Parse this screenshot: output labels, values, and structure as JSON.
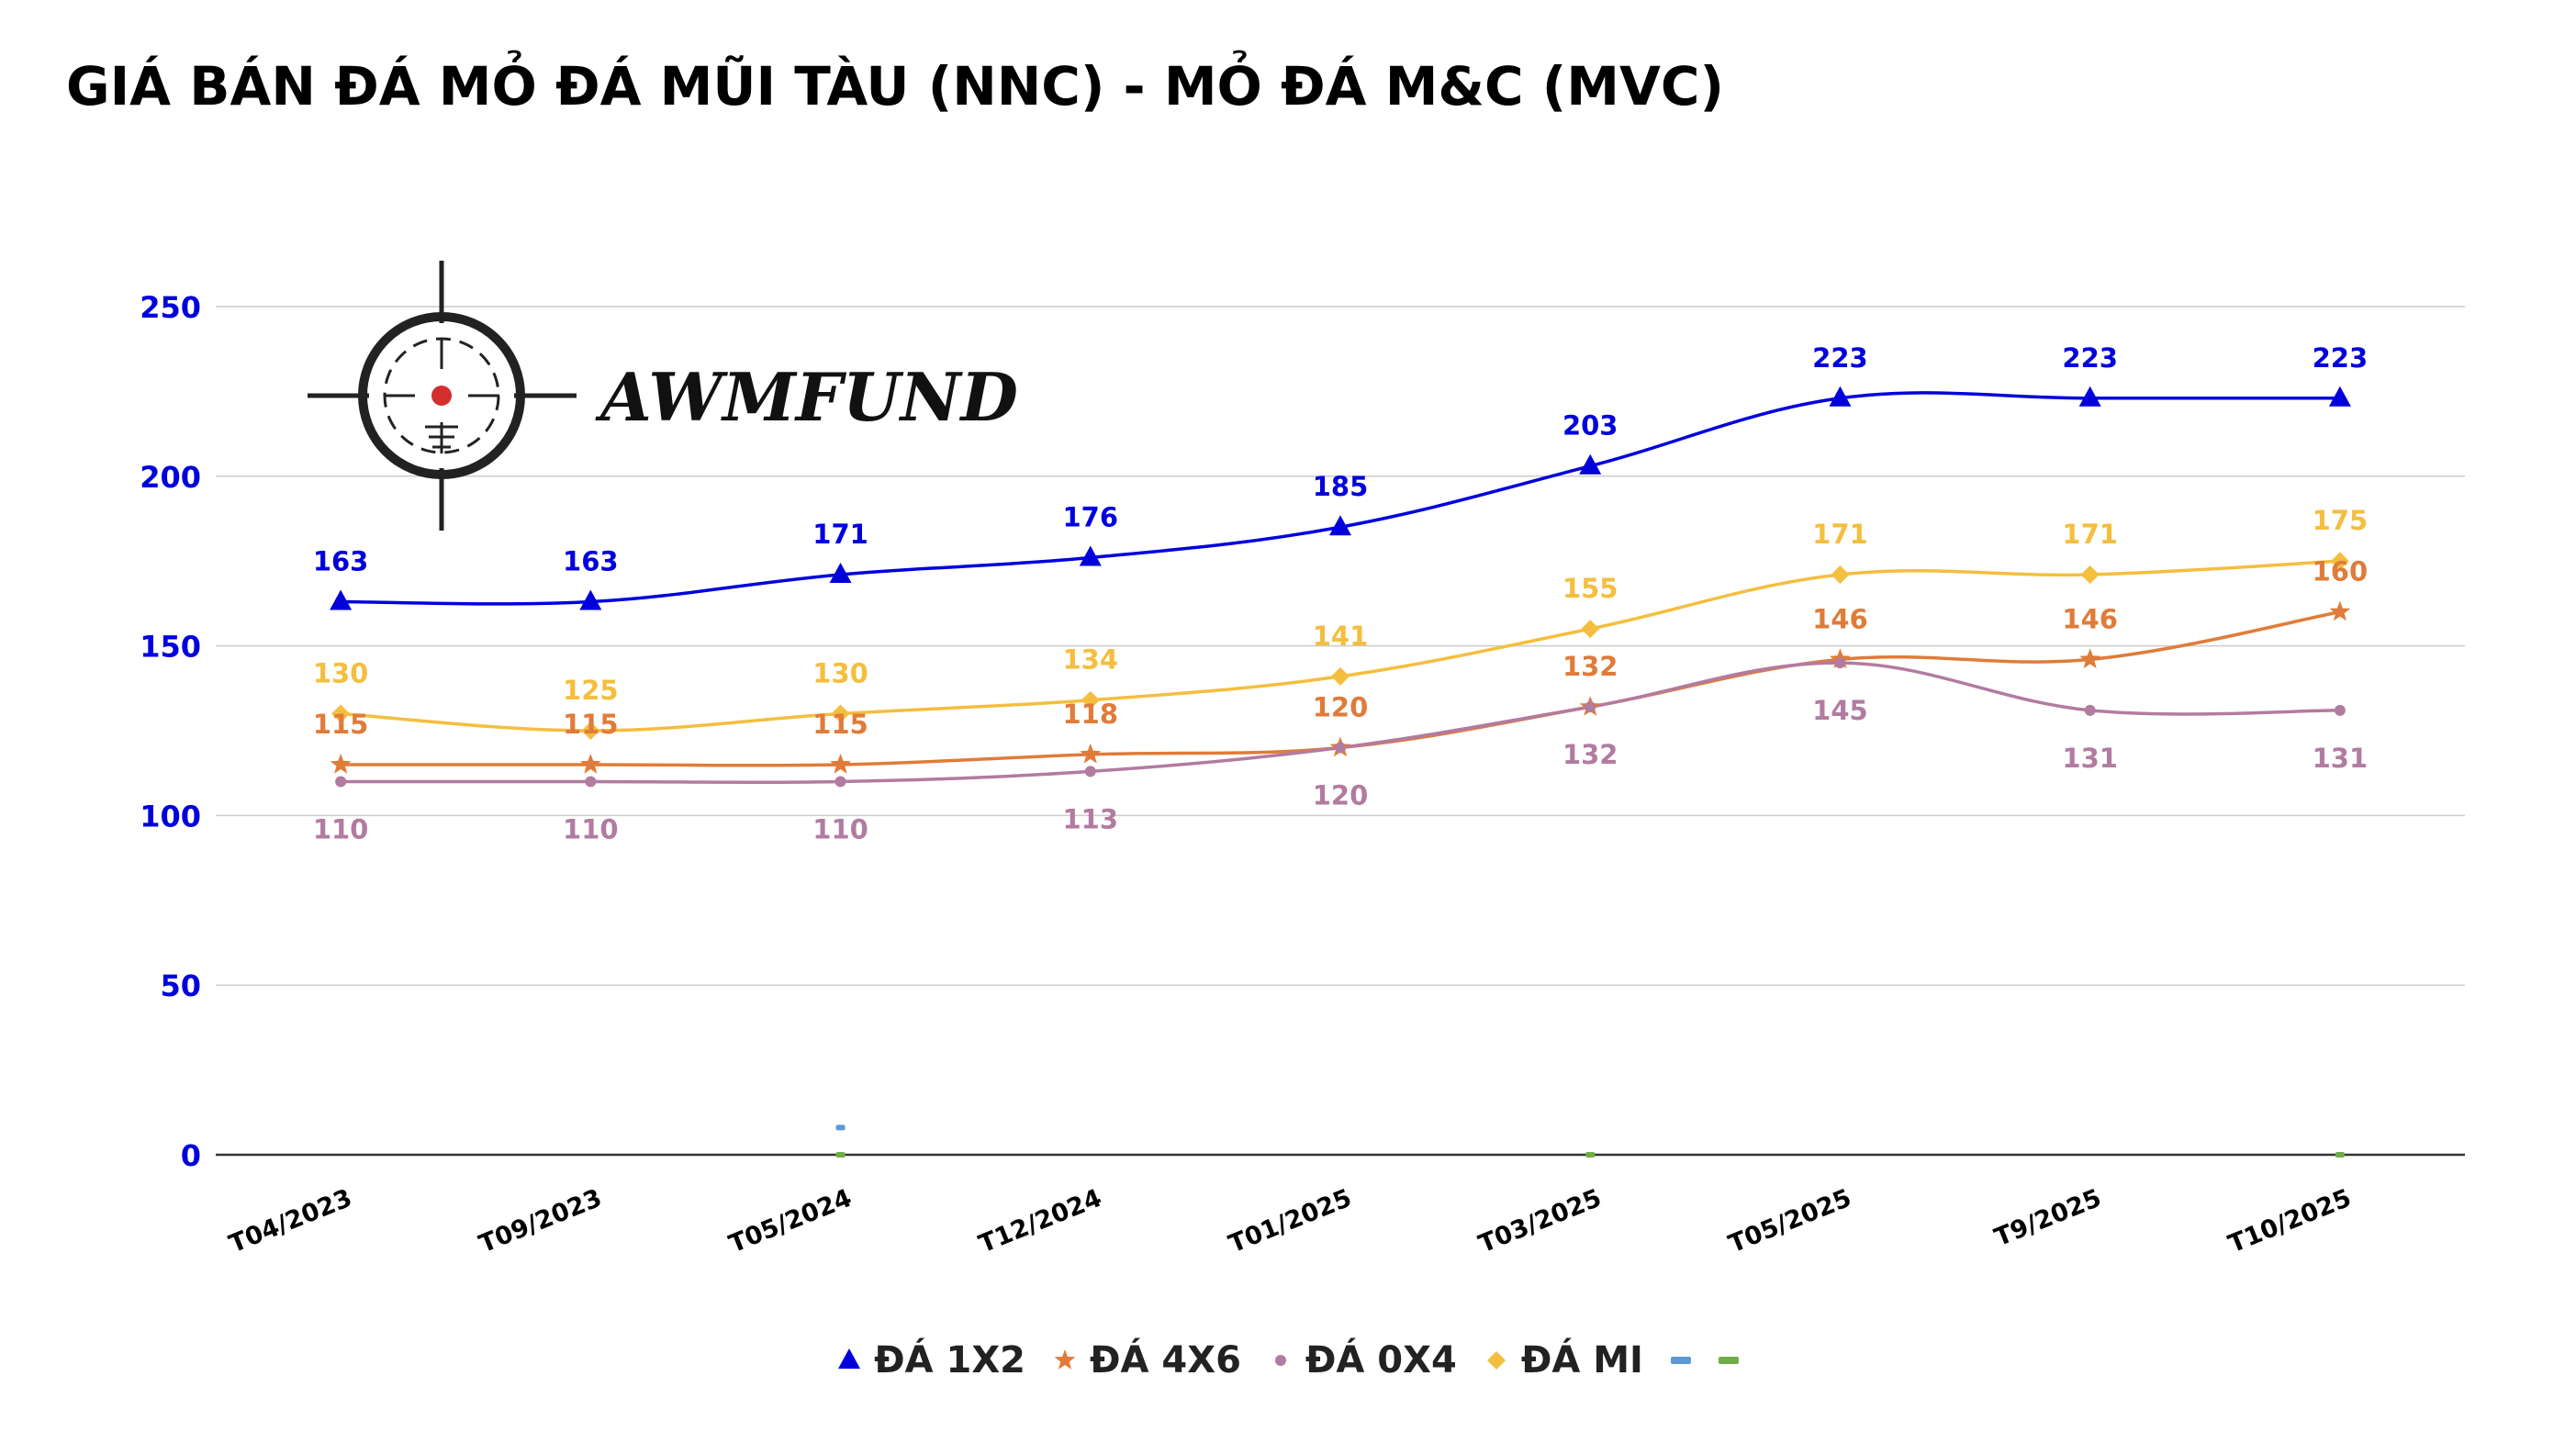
{
  "chart_data": {
    "type": "line",
    "title": "GIÁ BÁN ĐÁ MỎ ĐÁ MŨI TÀU (NNC) - MỎ ĐÁ M&C (MVC)",
    "xlabel": "",
    "ylabel": "",
    "categories": [
      "T04/2023",
      "T09/2023",
      "T05/2024",
      "T12/2024",
      "T01/2025",
      "T03/2025",
      "T05/2025",
      "T9/2025",
      "T10/2025"
    ],
    "ylim": [
      0,
      250
    ],
    "yticks": [
      0,
      50,
      100,
      150,
      200,
      250
    ],
    "grid": true,
    "legend_position": "bottom",
    "series": [
      {
        "name": "ĐÁ 1X2",
        "values": [
          163,
          163,
          171,
          176,
          185,
          203,
          223,
          223,
          223
        ],
        "color": "#0000dd",
        "marker": "triangle",
        "label_pos": "above"
      },
      {
        "name": "ĐÁ 4X6",
        "values": [
          115,
          115,
          115,
          118,
          120,
          132,
          146,
          146,
          160
        ],
        "color": "#e07b39",
        "marker": "star",
        "label_pos": "above"
      },
      {
        "name": "ĐÁ 0X4",
        "values": [
          110,
          110,
          110,
          113,
          120,
          132,
          145,
          131,
          131
        ],
        "color": "#b27ba0",
        "marker": "circle",
        "label_pos": "below"
      },
      {
        "name": "ĐÁ MI",
        "values": [
          130,
          125,
          130,
          134,
          141,
          155,
          171,
          171,
          175
        ],
        "color": "#f4be3e",
        "marker": "diamond",
        "label_pos": "above"
      },
      {
        "name": "",
        "values": [
          null,
          null,
          8,
          null,
          null,
          null,
          null,
          null,
          null
        ],
        "color": "#5b9bd5",
        "marker": "dash",
        "label_pos": "none"
      },
      {
        "name": "",
        "values": [
          null,
          null,
          0,
          null,
          null,
          0,
          null,
          null,
          0
        ],
        "color": "#70ad47",
        "marker": "dash",
        "label_pos": "none"
      }
    ]
  },
  "logo": {
    "text": "AWMFUND",
    "icon": "crosshair-scope-icon"
  },
  "colors": {
    "axis_ticks": "#0000dd",
    "grid": "#cccccc",
    "category_ticks": "#000000"
  }
}
